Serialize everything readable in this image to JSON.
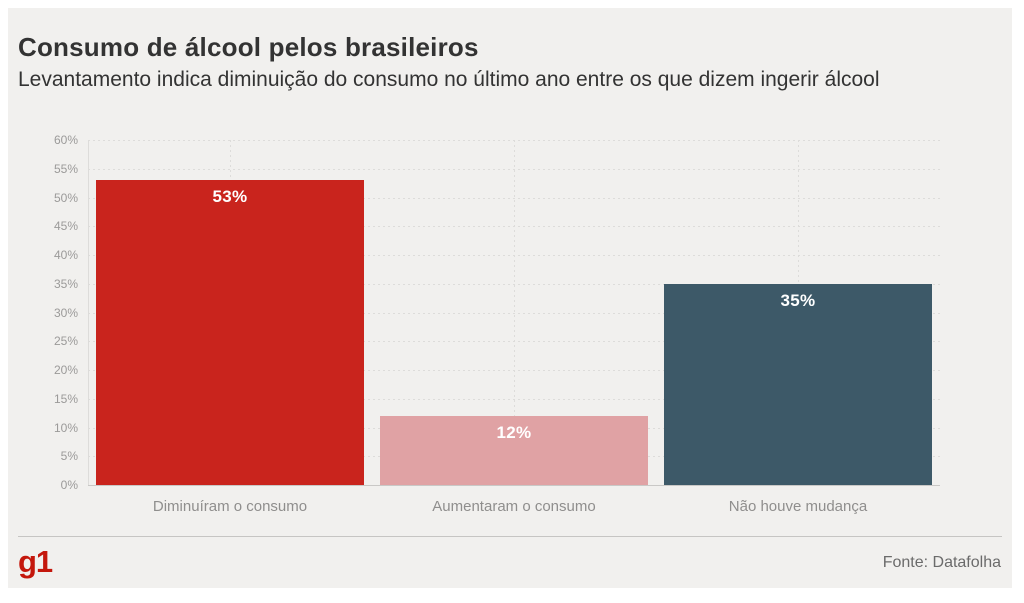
{
  "page": {
    "background": "#ffffff",
    "card_background": "#f1f0ee"
  },
  "header": {
    "title": "Consumo de álcool pelos brasileiros",
    "subtitle": "Levantamento indica diminuição do consumo no último ano entre os que dizem ingerir álcool"
  },
  "chart_data": {
    "type": "bar",
    "title": "Consumo de álcool pelos brasileiros",
    "subtitle": "Levantamento indica diminuição do consumo no último ano entre os que dizem ingerir álcool",
    "categories": [
      "Diminuíram o consumo",
      "Aumentaram o consumo",
      "Não houve mudança"
    ],
    "values": [
      53,
      12,
      35
    ],
    "value_labels": [
      "53%",
      "12%",
      "35%"
    ],
    "bar_colors": [
      "#c9241d",
      "#e0a2a4",
      "#3d5968"
    ],
    "xlabel": "",
    "ylabel": "",
    "ylim": [
      0,
      60
    ],
    "ytick_step": 5,
    "ytick_labels": [
      "0%",
      "5%",
      "10%",
      "15%",
      "20%",
      "25%",
      "30%",
      "35%",
      "40%",
      "45%",
      "50%",
      "55%",
      "60%"
    ],
    "grid": true,
    "grid_style": "dotted",
    "legend": false,
    "value_label_color": "#ffffff",
    "axis_label_color": "#9b9a99",
    "category_label_color": "#8f8e8d"
  },
  "footer": {
    "logo": "g1",
    "logo_color": "#c4170c",
    "source": "Fonte: Datafolha"
  }
}
